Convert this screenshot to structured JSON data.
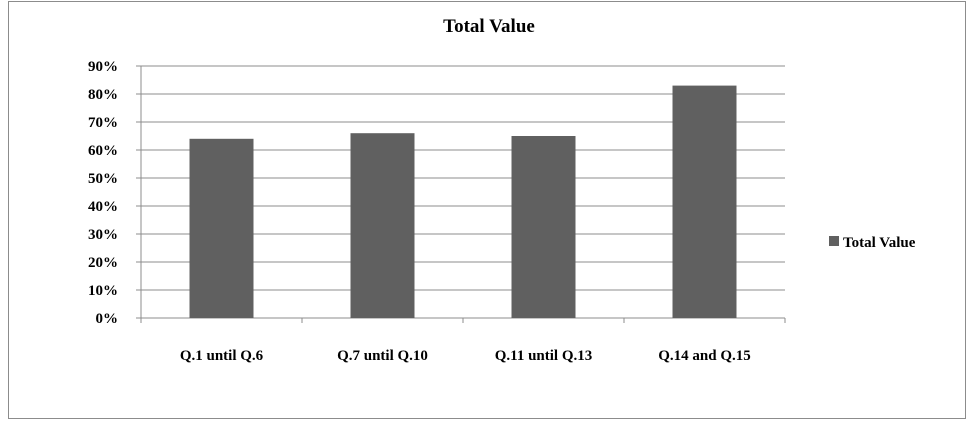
{
  "chart_data": {
    "type": "bar",
    "title": "Total Value",
    "categories": [
      "Q.1 until Q.6",
      "Q.7 until Q.10",
      "Q.11 until Q.13",
      "Q.14 and Q.15"
    ],
    "series": [
      {
        "name": "Total Value",
        "values": [
          0.64,
          0.66,
          0.65,
          0.83
        ],
        "color": "#606060"
      }
    ],
    "ylim": [
      0,
      0.9
    ],
    "yticks": [
      0,
      0.1,
      0.2,
      0.3,
      0.4,
      0.5,
      0.6,
      0.7,
      0.8,
      0.9
    ],
    "ytick_labels": [
      "0%",
      "10%",
      "20%",
      "30%",
      "40%",
      "50%",
      "60%",
      "70%",
      "80%",
      "90%"
    ],
    "xlabel": "",
    "ylabel": "",
    "grid": true,
    "legend": "right"
  }
}
